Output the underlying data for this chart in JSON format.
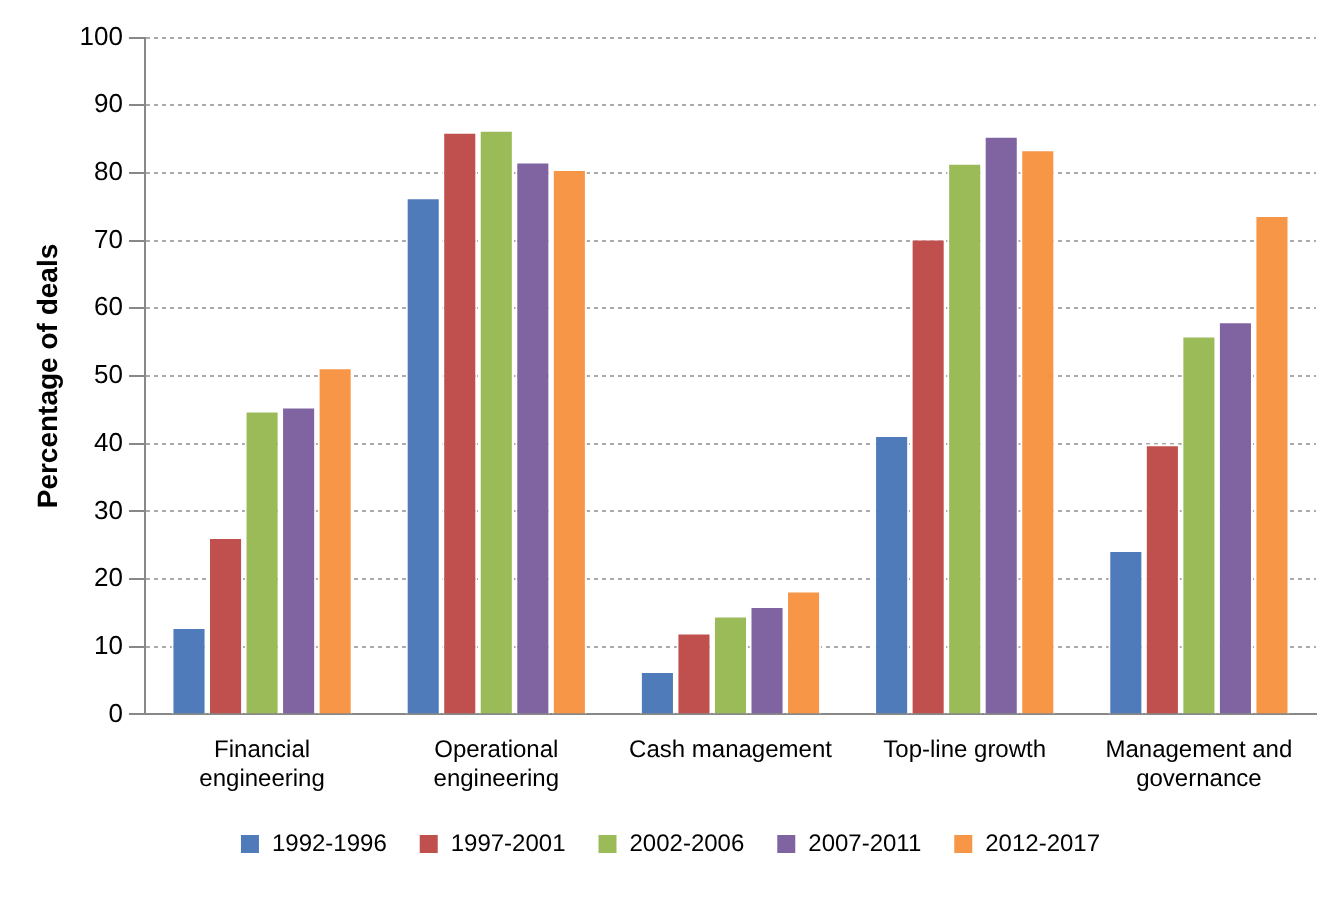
{
  "chart_data": {
    "type": "bar",
    "ylabel": "Percentage of deals",
    "categories": [
      "Financial engineering",
      "Operational engineering",
      "Cash management",
      "Top-line growth",
      "Management and governance"
    ],
    "series": [
      {
        "name": "1992-1996",
        "color": "#4f7bba",
        "values": [
          12.9,
          76.4,
          6.4,
          41.3,
          24.3
        ]
      },
      {
        "name": "1997-2001",
        "color": "#c0504d",
        "values": [
          26.2,
          86.1,
          12.1,
          70.3,
          39.9
        ]
      },
      {
        "name": "2002-2006",
        "color": "#9bbb59",
        "values": [
          44.9,
          86.4,
          14.6,
          81.5,
          56.0
        ]
      },
      {
        "name": "2007-2011",
        "color": "#8064a2",
        "values": [
          45.5,
          81.7,
          16.0,
          85.5,
          58.1
        ]
      },
      {
        "name": "2012-2017",
        "color": "#f79646",
        "values": [
          51.3,
          80.6,
          18.3,
          83.5,
          73.8
        ]
      }
    ],
    "ylim": [
      0,
      100
    ],
    "yticks": [
      0,
      10,
      20,
      30,
      40,
      50,
      60,
      70,
      80,
      90,
      100
    ],
    "grid": "y",
    "legend": "bottom"
  }
}
